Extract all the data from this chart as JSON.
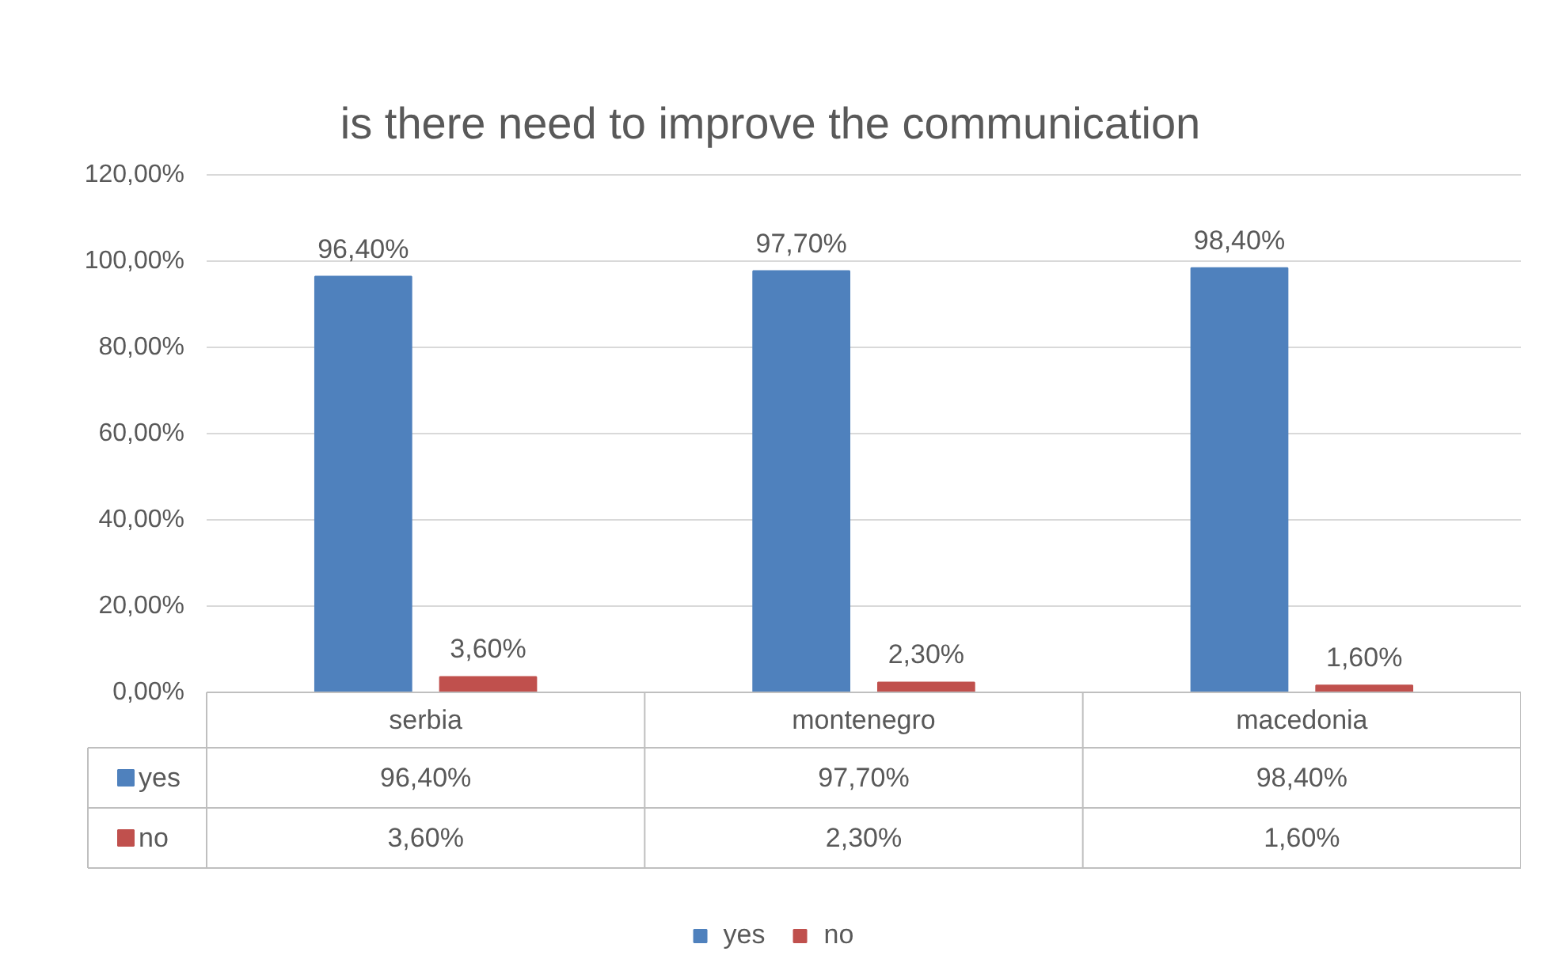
{
  "chart_data": {
    "type": "bar",
    "title": "is there need to improve the communication",
    "categories": [
      "serbia",
      "montenegro",
      "macedonia"
    ],
    "series": [
      {
        "name": "yes",
        "color": "#4f81bd",
        "values": [
          96.4,
          97.7,
          98.4
        ],
        "value_labels": [
          "96,40%",
          "97,70%",
          "98,40%"
        ]
      },
      {
        "name": "no",
        "color": "#c0504d",
        "values": [
          3.6,
          2.3,
          1.6
        ],
        "value_labels": [
          "3,60%",
          "2,30%",
          "1,60%"
        ]
      }
    ],
    "ylim": [
      0,
      120
    ],
    "yticks": [
      {
        "value": 0,
        "label": "0,00%"
      },
      {
        "value": 20,
        "label": "20,00%"
      },
      {
        "value": 40,
        "label": "40,00%"
      },
      {
        "value": 60,
        "label": "60,00%"
      },
      {
        "value": 80,
        "label": "80,00%"
      },
      {
        "value": 100,
        "label": "100,00%"
      },
      {
        "value": 120,
        "label": "120,00%"
      }
    ],
    "grid": "y",
    "legend": "bottom"
  }
}
